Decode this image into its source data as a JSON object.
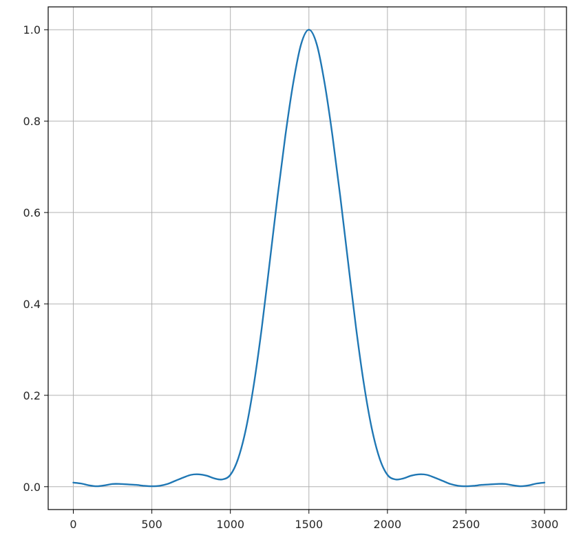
{
  "chart_data": {
    "type": "line",
    "title": "",
    "xlabel": "",
    "ylabel": "",
    "xlim": [
      -160,
      3140
    ],
    "ylim": [
      -0.05,
      1.05
    ],
    "x_ticks": [
      0,
      500,
      1000,
      1500,
      2000,
      2500,
      3000
    ],
    "x_tick_labels": [
      "0",
      "500",
      "1000",
      "1500",
      "2000",
      "2500",
      "3000"
    ],
    "y_ticks": [
      0.0,
      0.2,
      0.4,
      0.6,
      0.8,
      1.0
    ],
    "y_tick_labels": [
      "0.0",
      "0.2",
      "0.4",
      "0.6",
      "0.8",
      "1.0"
    ],
    "grid": true,
    "legend": false,
    "line_color": "#1f77b4",
    "grid_color": "#b0b0b0",
    "series": [
      {
        "x": [
          0,
          50,
          100,
          150,
          200,
          250,
          300,
          350,
          400,
          450,
          500,
          550,
          600,
          650,
          700,
          750,
          800,
          850,
          900,
          950,
          1000,
          1050,
          1100,
          1150,
          1200,
          1250,
          1300,
          1350,
          1400,
          1450,
          1500,
          1550,
          1600,
          1650,
          1700,
          1750,
          1800,
          1850,
          1900,
          1950,
          2000,
          2050,
          2100,
          2150,
          2200,
          2250,
          2300,
          2350,
          2400,
          2450,
          2500,
          2550,
          2600,
          2650,
          2700,
          2750,
          2800,
          2850,
          2900,
          2950,
          3000
        ],
        "y": [
          0.009,
          0.007,
          0.003,
          0.001,
          0.003,
          0.006,
          0.006,
          0.005,
          0.004,
          0.002,
          0.001,
          0.002,
          0.006,
          0.013,
          0.02,
          0.026,
          0.027,
          0.024,
          0.018,
          0.016,
          0.026,
          0.062,
          0.128,
          0.225,
          0.348,
          0.49,
          0.634,
          0.768,
          0.883,
          0.968,
          1.0,
          0.968,
          0.883,
          0.768,
          0.634,
          0.49,
          0.348,
          0.225,
          0.128,
          0.062,
          0.026,
          0.016,
          0.018,
          0.024,
          0.027,
          0.026,
          0.02,
          0.013,
          0.006,
          0.002,
          0.001,
          0.002,
          0.004,
          0.005,
          0.006,
          0.006,
          0.003,
          0.001,
          0.003,
          0.007,
          0.009
        ]
      }
    ]
  }
}
